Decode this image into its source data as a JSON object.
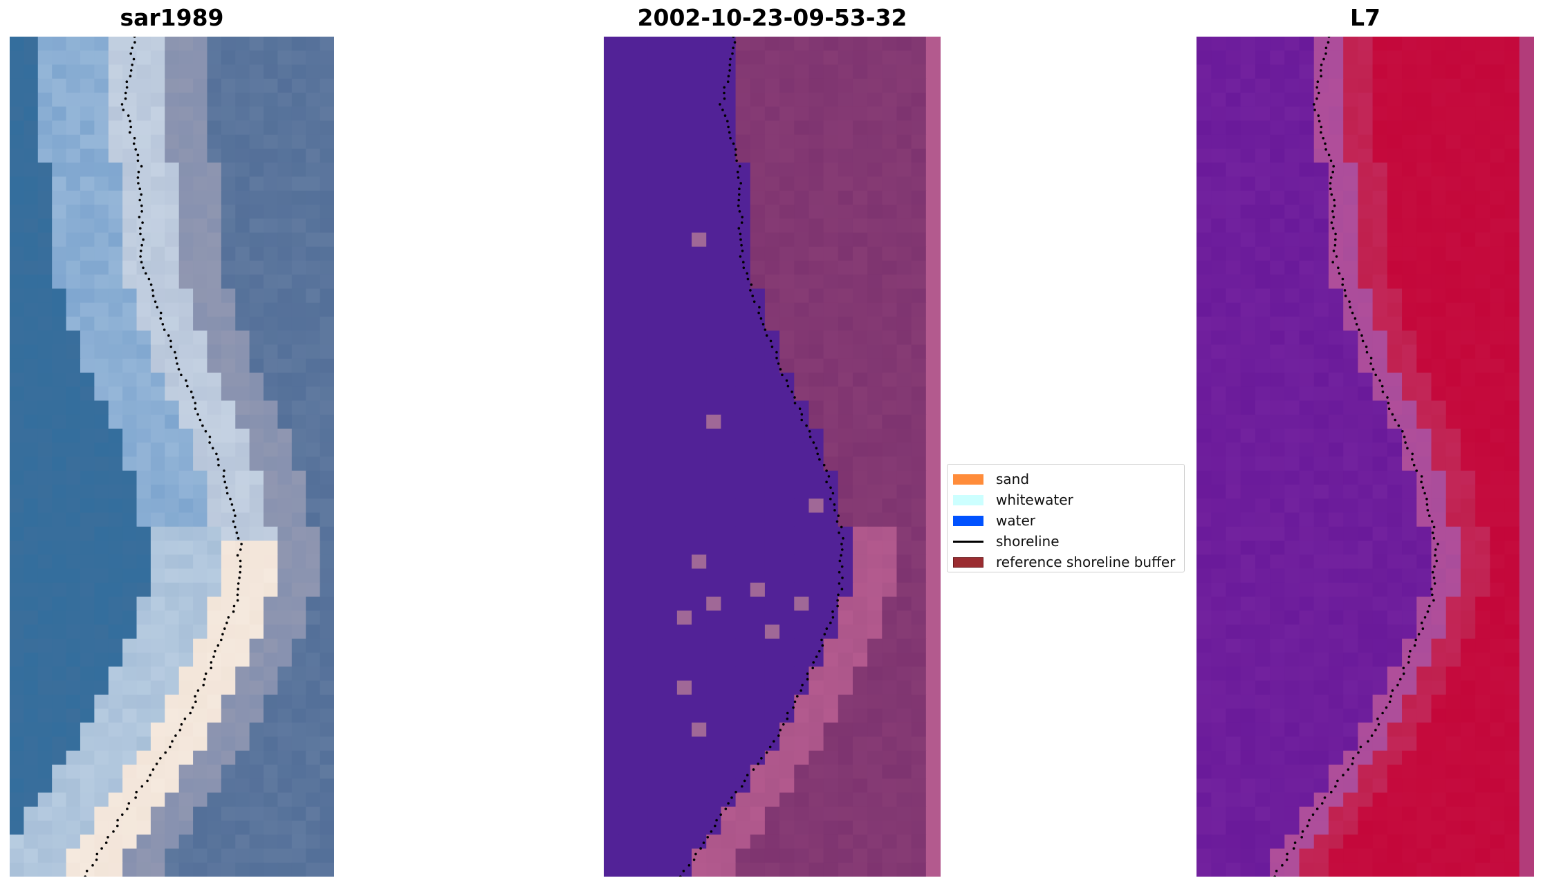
{
  "panels": [
    {
      "id": "rgb",
      "title": "sar1989"
    },
    {
      "id": "classified",
      "title": "2002-10-23-09-53-32"
    },
    {
      "id": "mndwi",
      "title": "L7"
    }
  ],
  "legend": {
    "items": [
      {
        "label": "sand",
        "color": "#FF8C3A",
        "kind": "patch"
      },
      {
        "label": "whitewater",
        "color": "#CCFFFF",
        "kind": "patch"
      },
      {
        "label": "water",
        "color": "#0052FF",
        "kind": "patch"
      },
      {
        "label": "shoreline",
        "color": "#000000",
        "kind": "line"
      },
      {
        "label": "reference shoreline buffer",
        "color": "#9B2D31",
        "kind": "patch"
      }
    ]
  },
  "colors": {
    "water_class": "#522297",
    "buffer_overlay": "#B35A8E",
    "ndwi_water": "#7A1F9E",
    "ndwi_land": "#C4073A",
    "rgb_water": "#3A6F9C",
    "rgb_sand": "#F3E8DC"
  }
}
